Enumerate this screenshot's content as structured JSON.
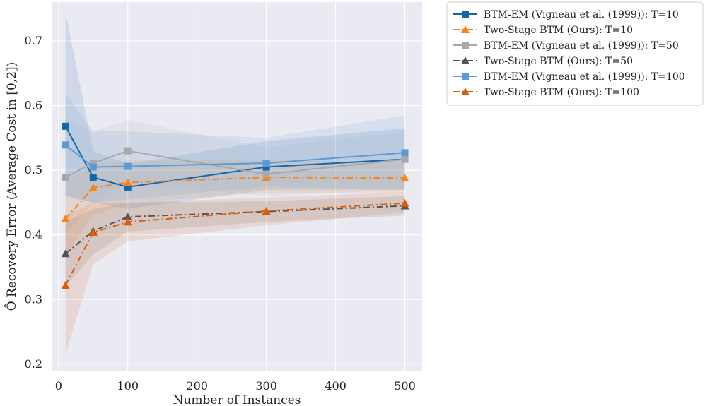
{
  "chart_data": {
    "type": "line",
    "title": "",
    "xlabel": "Number of Instances",
    "ylabel": "Ô Recovery Error (Average Cost in [0,2])",
    "xlim": [
      -10,
      525
    ],
    "ylim": [
      0.19,
      0.76
    ],
    "xticks": [
      0,
      100,
      200,
      300,
      400,
      500
    ],
    "yticks": [
      0.2,
      0.3,
      0.4,
      0.5,
      0.6,
      0.7
    ],
    "xtick_labels": [
      "0",
      "100",
      "200",
      "300",
      "400",
      "500"
    ],
    "ytick_labels": [
      "0.2",
      "0.3",
      "0.4",
      "0.5",
      "0.6",
      "0.7"
    ],
    "grid": true,
    "legend_position": "outside-top-right",
    "x": [
      10,
      50,
      100,
      300,
      500
    ],
    "series": [
      {
        "name": "BTM-EM (Vigneau et al. (1999)): T=10",
        "color": "#1468a8",
        "marker": "square",
        "dash": "solid",
        "values": [
          0.568,
          0.489,
          0.474,
          0.505,
          0.517
        ],
        "lower": [
          0.46,
          0.45,
          0.44,
          0.47,
          0.47
        ],
        "upper": [
          0.745,
          0.53,
          0.51,
          0.545,
          0.565
        ]
      },
      {
        "name": "Two-Stage BTM (Ours): T=10",
        "color": "#f58518",
        "marker": "triangle",
        "dash": "dashdot",
        "values": [
          0.425,
          0.473,
          0.481,
          0.489,
          0.488
        ],
        "lower": [
          0.37,
          0.43,
          0.45,
          0.465,
          0.465
        ],
        "upper": [
          0.48,
          0.51,
          0.515,
          0.515,
          0.512
        ]
      },
      {
        "name": "BTM-EM (Vigneau et al. (1999)): T=50",
        "color": "#a8a8a8",
        "marker": "square",
        "dash": "solid",
        "values": [
          0.489,
          0.511,
          0.53,
          0.494,
          0.517
        ],
        "lower": [
          0.4,
          0.45,
          0.48,
          0.46,
          0.47
        ],
        "upper": [
          0.58,
          0.56,
          0.578,
          0.535,
          0.56
        ]
      },
      {
        "name": "Two-Stage BTM (Ours): T=50",
        "color": "#555555",
        "marker": "triangle",
        "dash": "dashdot",
        "values": [
          0.371,
          0.406,
          0.428,
          0.436,
          0.445
        ],
        "lower": [
          0.32,
          0.37,
          0.405,
          0.42,
          0.43
        ],
        "upper": [
          0.42,
          0.44,
          0.45,
          0.452,
          0.46
        ]
      },
      {
        "name": "BTM-EM (Vigneau et al. (1999)): T=100",
        "color": "#5b9bd5",
        "marker": "square",
        "dash": "solid",
        "values": [
          0.539,
          0.505,
          0.506,
          0.511,
          0.527
        ],
        "lower": [
          0.46,
          0.45,
          0.455,
          0.475,
          0.47
        ],
        "upper": [
          0.62,
          0.56,
          0.56,
          0.55,
          0.585
        ]
      },
      {
        "name": "Two-Stage BTM (Ours): T=100",
        "color": "#d95f0e",
        "marker": "triangle",
        "dash": "dashdot",
        "values": [
          0.322,
          0.404,
          0.42,
          0.437,
          0.449
        ],
        "lower": [
          0.215,
          0.355,
          0.39,
          0.415,
          0.435
        ],
        "upper": [
          0.43,
          0.45,
          0.45,
          0.458,
          0.466
        ]
      }
    ]
  }
}
